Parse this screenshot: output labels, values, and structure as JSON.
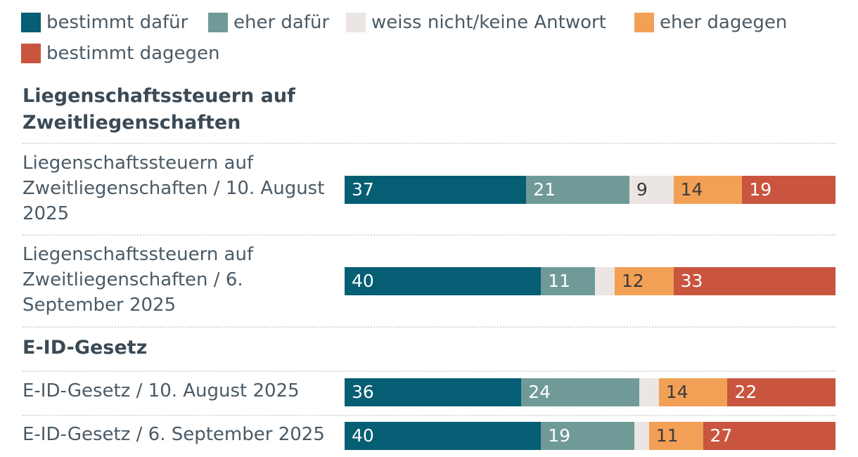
{
  "chart_data": {
    "type": "bar",
    "orientation": "horizontal",
    "stacked": true,
    "legend_placement": "top",
    "grid": false,
    "xlim": [
      0,
      100
    ],
    "categories_legend": [
      {
        "name": "bestimmt dafür",
        "color": "#055e73"
      },
      {
        "name": "eher dafür",
        "color": "#6f9a98"
      },
      {
        "name": "weiss nicht/keine Antwort",
        "color": "#ebe6e3"
      },
      {
        "name": "eher dagegen",
        "color": "#f2a055"
      },
      {
        "name": "bestimmt dagegen",
        "color": "#c9553e"
      }
    ],
    "groups": [
      {
        "title": "Liegenschaftssteuern auf Zweitliegenschaften",
        "rows": [
          {
            "label": "Liegenschaftssteuern auf Zweitliegenschaften / 10. August 2025",
            "values": [
              37,
              21,
              9,
              14,
              19
            ],
            "labels": [
              "37",
              "21",
              "9",
              "14",
              "19"
            ]
          },
          {
            "label": "Liegenschaftssteuern auf Zweitliegenschaften / 6. September 2025",
            "values": [
              40,
              11,
              4,
              12,
              33
            ],
            "labels": [
              "40",
              "11",
              "",
              "12",
              "33"
            ]
          }
        ]
      },
      {
        "title": "E-ID-Gesetz",
        "rows": [
          {
            "label": "E-ID-Gesetz / 10. August 2025",
            "values": [
              36,
              24,
              4,
              14,
              22
            ],
            "labels": [
              "36",
              "24",
              "",
              "14",
              "22"
            ]
          },
          {
            "label": "E-ID-Gesetz / 6. September 2025",
            "values": [
              40,
              19,
              3,
              11,
              27
            ],
            "labels": [
              "40",
              "19",
              "",
              "11",
              "27"
            ]
          }
        ]
      }
    ]
  }
}
